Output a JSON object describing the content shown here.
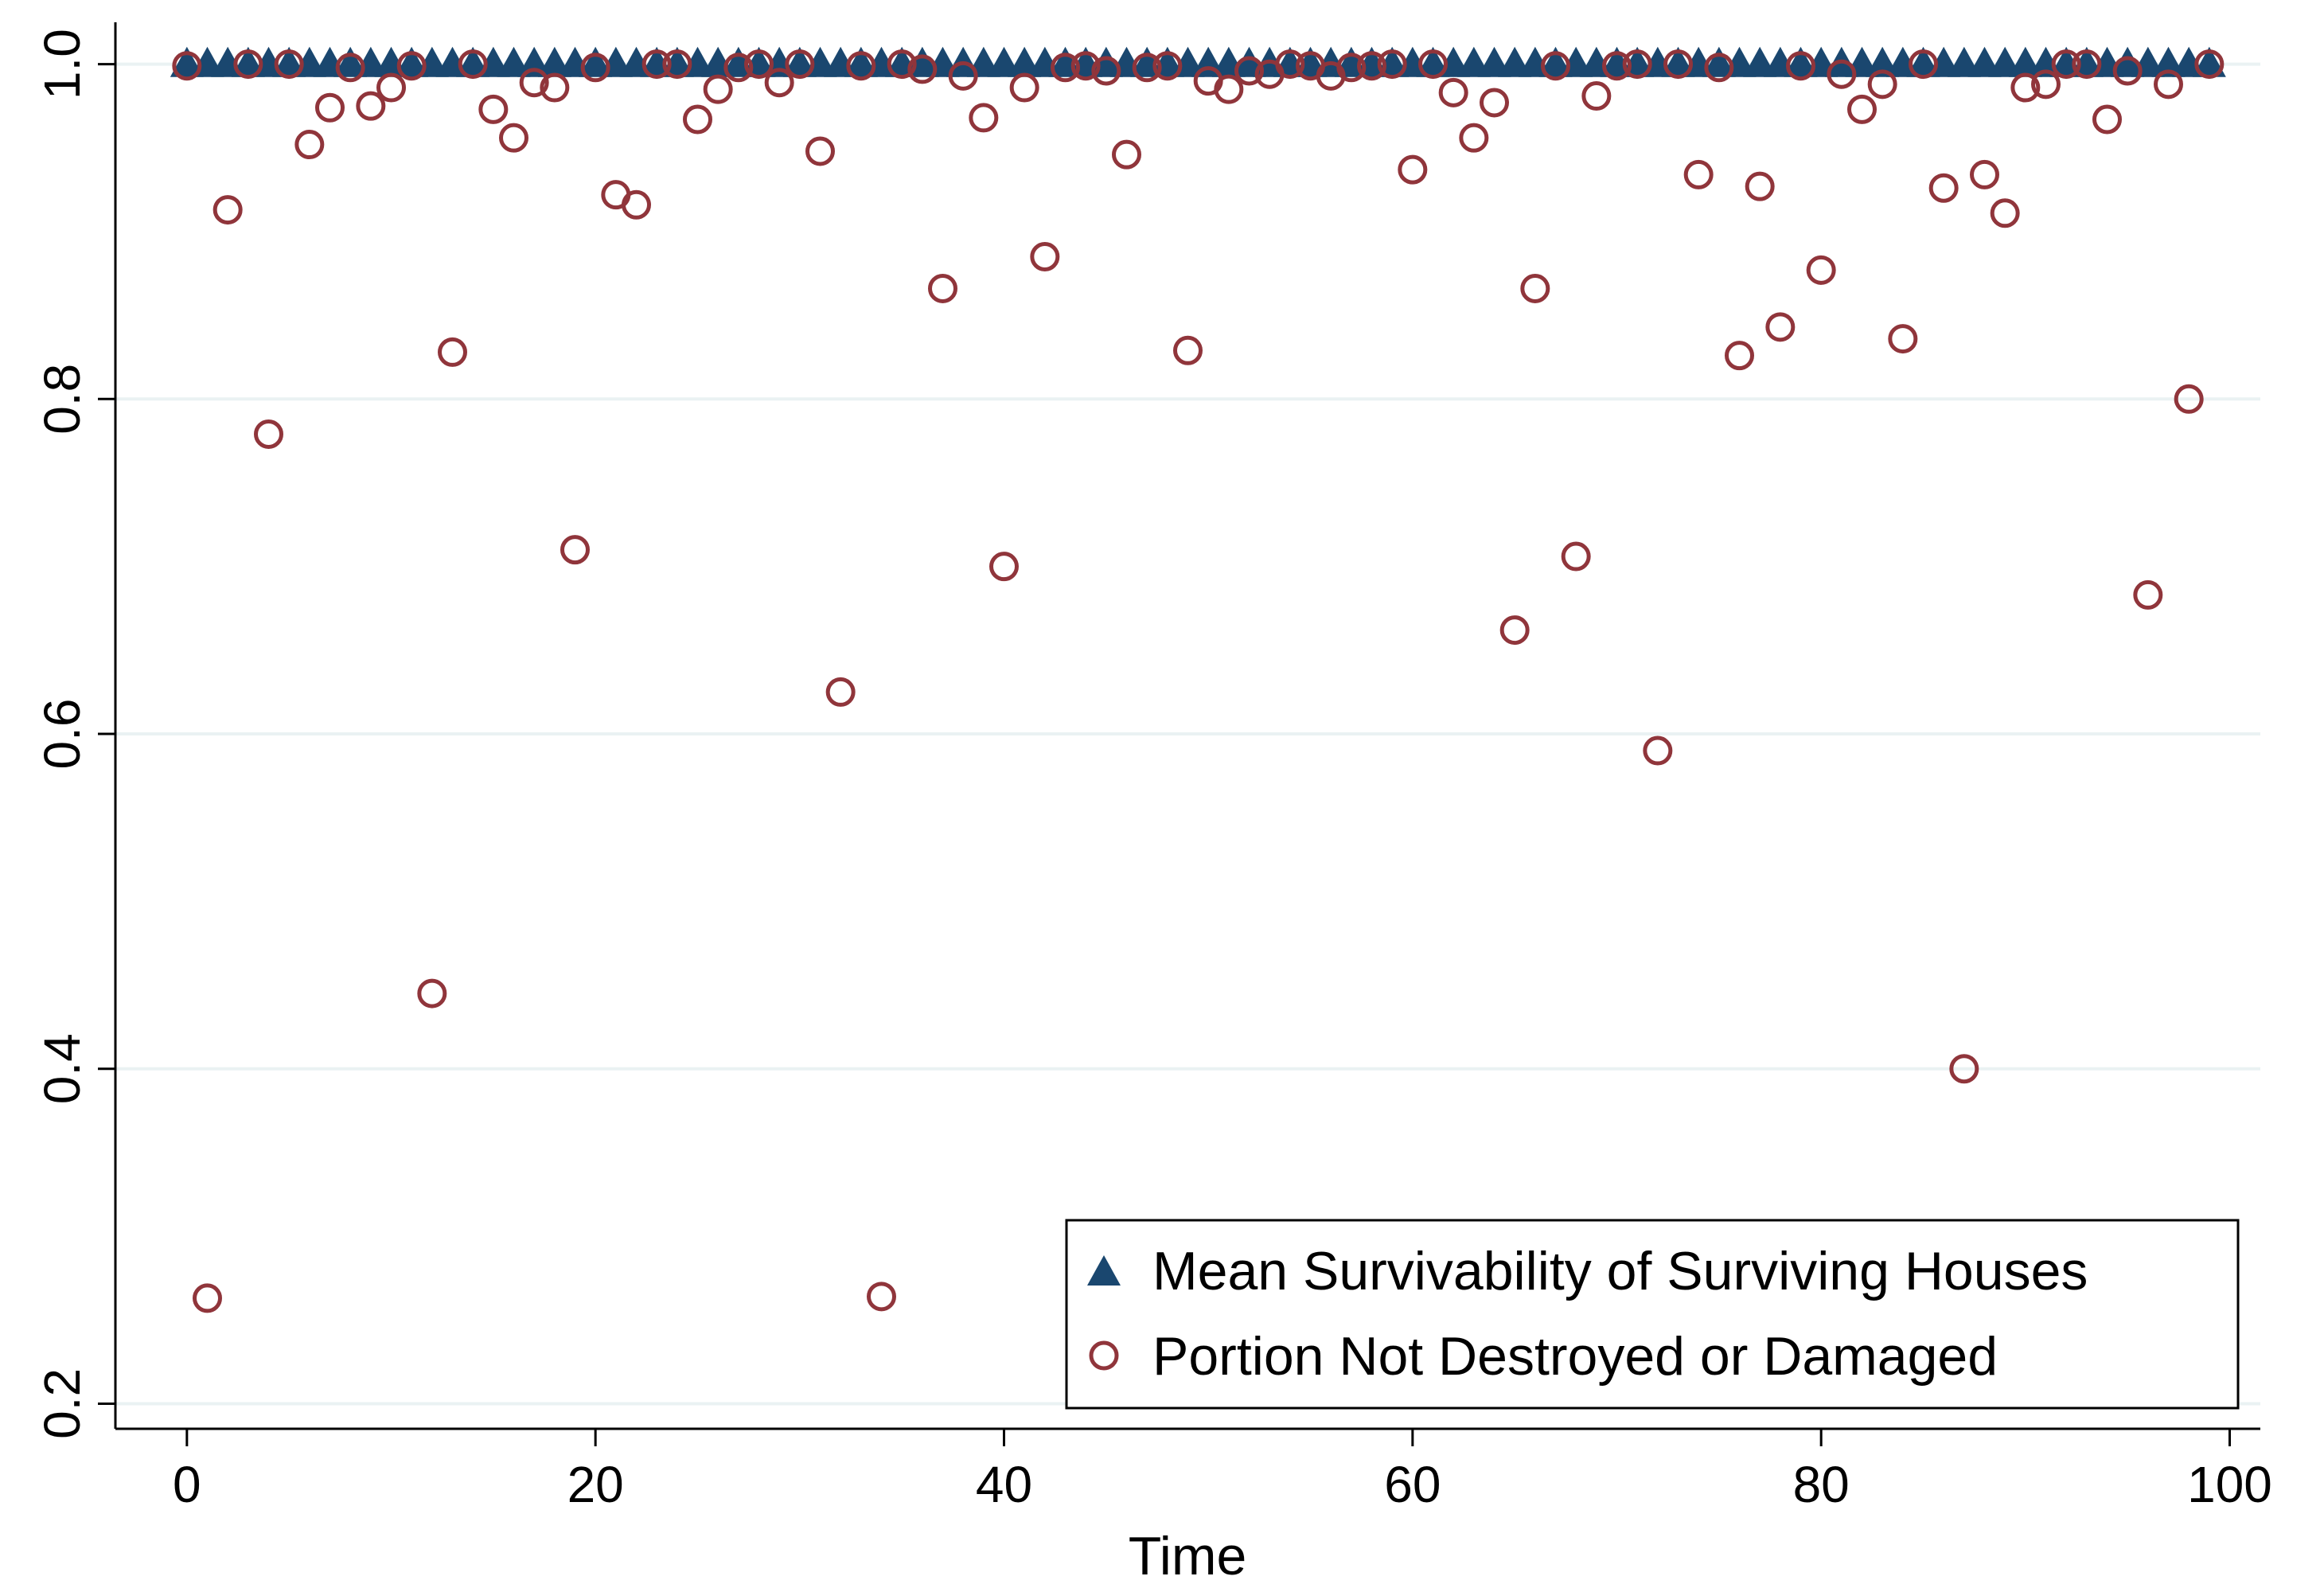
{
  "chart_data": {
    "type": "scatter",
    "title": "",
    "xlabel": "Time",
    "ylabel": "",
    "xlim": [
      -3.5,
      101.5
    ],
    "ylim": [
      0.185,
      1.025
    ],
    "x_ticks": [
      0,
      20,
      40,
      60,
      80,
      100
    ],
    "x_tick_labels": [
      "0",
      "20",
      "40",
      "60",
      "80",
      "100"
    ],
    "y_ticks": [
      0.2,
      0.4,
      0.6,
      0.8,
      1.0
    ],
    "y_tick_labels": [
      "0.2",
      "0.4",
      "0.6",
      "0.8",
      "1.0"
    ],
    "grid": "horizontal",
    "legend_position": "bottom-right",
    "colors": {
      "mean": "#1a476f",
      "portion": "#90353b",
      "grid": "#eaf2f3"
    },
    "series": [
      {
        "name": "Mean Survivability of Surviving Houses",
        "marker": "triangle",
        "x": [
          0,
          1,
          2,
          3,
          4,
          5,
          6,
          7,
          8,
          9,
          10,
          11,
          12,
          13,
          14,
          15,
          16,
          17,
          18,
          19,
          20,
          21,
          22,
          23,
          24,
          25,
          26,
          27,
          28,
          29,
          30,
          31,
          32,
          33,
          34,
          35,
          36,
          37,
          38,
          39,
          40,
          41,
          42,
          43,
          44,
          45,
          46,
          47,
          48,
          49,
          50,
          51,
          52,
          53,
          54,
          55,
          56,
          57,
          58,
          59,
          60,
          61,
          62,
          63,
          64,
          65,
          66,
          67,
          68,
          69,
          70,
          71,
          72,
          73,
          74,
          75,
          76,
          77,
          78,
          79,
          80,
          81,
          82,
          83,
          84,
          85,
          86,
          87,
          88,
          89,
          90,
          91,
          92,
          93,
          94,
          95,
          96,
          97,
          98,
          99
        ],
        "y": [
          0.999,
          0.999,
          0.999,
          0.999,
          0.999,
          0.999,
          0.999,
          0.999,
          0.999,
          0.999,
          0.999,
          0.999,
          0.999,
          0.999,
          0.999,
          0.999,
          0.999,
          0.999,
          0.999,
          0.999,
          0.999,
          0.999,
          0.999,
          0.999,
          0.999,
          0.999,
          0.999,
          0.999,
          0.999,
          0.999,
          0.999,
          0.999,
          0.999,
          0.999,
          0.999,
          0.999,
          0.999,
          0.999,
          0.999,
          0.999,
          0.999,
          0.999,
          0.999,
          0.999,
          0.999,
          0.999,
          0.999,
          0.999,
          0.999,
          0.999,
          0.999,
          0.999,
          0.999,
          0.999,
          0.999,
          0.999,
          0.999,
          0.999,
          0.999,
          0.999,
          0.999,
          0.999,
          0.999,
          0.999,
          0.999,
          0.999,
          0.999,
          0.999,
          0.999,
          0.999,
          0.999,
          0.999,
          0.999,
          0.999,
          0.999,
          0.999,
          0.999,
          0.999,
          0.999,
          0.999,
          0.999,
          0.999,
          0.999,
          0.999,
          0.999,
          0.999,
          0.999,
          0.999,
          0.999,
          0.999,
          0.999,
          0.999,
          0.999,
          0.999,
          0.999,
          0.999,
          0.999,
          0.999,
          0.999,
          0.999
        ]
      },
      {
        "name": "Portion Not Destroyed or Damaged",
        "marker": "hollow-circle",
        "x": [
          0,
          1,
          2,
          3,
          4,
          5,
          6,
          7,
          8,
          9,
          10,
          11,
          12,
          13,
          14,
          15,
          16,
          17,
          18,
          19,
          20,
          21,
          22,
          23,
          24,
          25,
          26,
          27,
          28,
          29,
          30,
          31,
          32,
          33,
          34,
          35,
          36,
          37,
          38,
          39,
          40,
          41,
          42,
          43,
          44,
          45,
          46,
          47,
          48,
          49,
          50,
          51,
          52,
          53,
          54,
          55,
          56,
          57,
          58,
          59,
          60,
          61,
          62,
          63,
          64,
          65,
          66,
          67,
          68,
          69,
          70,
          71,
          72,
          73,
          74,
          75,
          76,
          77,
          78,
          79,
          80,
          81,
          82,
          83,
          84,
          85,
          86,
          87,
          88,
          89,
          90,
          91,
          92,
          93,
          94,
          95,
          96,
          97,
          98,
          99
        ],
        "y": [
          0.999,
          0.263,
          0.913,
          1.0,
          0.779,
          1.0,
          0.952,
          0.974,
          0.998,
          0.975,
          0.986,
          0.999,
          0.445,
          0.828,
          1.0,
          0.973,
          0.956,
          0.989,
          0.986,
          0.71,
          0.998,
          0.922,
          0.916,
          1.0,
          1.0,
          0.967,
          0.985,
          0.998,
          1.0,
          0.989,
          1.0,
          0.948,
          0.625,
          0.999,
          0.264,
          1.0,
          0.997,
          0.866,
          0.993,
          0.968,
          0.7,
          0.986,
          0.885,
          0.998,
          0.999,
          0.996,
          0.946,
          0.998,
          0.999,
          0.829,
          0.99,
          0.985,
          0.996,
          0.994,
          1.0,
          0.999,
          0.993,
          0.998,
          0.999,
          1.0,
          0.937,
          1.0,
          0.983,
          0.956,
          0.977,
          0.662,
          0.866,
          0.999,
          0.706,
          0.981,
          0.999,
          1.0,
          0.59,
          1.0,
          0.934,
          0.998,
          0.826,
          0.927,
          0.843,
          0.999,
          0.877,
          0.994,
          0.973,
          0.988,
          0.836,
          1.0,
          0.926,
          0.4,
          0.934,
          0.911,
          0.986,
          0.988,
          1.0,
          1.0,
          0.967,
          0.996,
          0.683,
          0.988,
          0.8,
          1.0
        ]
      }
    ]
  }
}
